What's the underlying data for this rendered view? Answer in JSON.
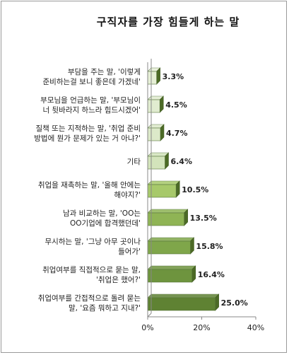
{
  "colors": {
    "bar_shades": [
      "#e6efd6",
      "#e1ecd0",
      "#dce9c9",
      "#d3e4bb",
      "#a7c96a",
      "#8fb455",
      "#7fa64a",
      "#6e943e",
      "#5f8233"
    ],
    "bar_side": "#4c6a26",
    "axis": "#888888",
    "frame": "#9a9a9a"
  },
  "chart_data": {
    "type": "bar",
    "orientation": "horizontal",
    "title": "구직자를 가장 힘들게 하는 말",
    "categories": [
      [
        "부담을 주는 말, '이렇게",
        "준비하는걸 보니 좋은데 가겠네'"
      ],
      [
        "부모님을 언급하는 말, '부모님이",
        "너 뒷바라지 하느라 힘드시겠어'"
      ],
      [
        "질책 또는 지적하는 말, '취업 준비",
        "방법에 뭔가 문제가 있는 거 아냐?'"
      ],
      [
        "기타"
      ],
      [
        "취업을 재촉하는 말, '올해 안에는",
        "해야지?'"
      ],
      [
        "남과 비교하는 말, 'OO는",
        "OO기업에 합격했던데'"
      ],
      [
        "무시하는 말, '그냥 아무 곳이나",
        "들어가'"
      ],
      [
        "취업여부를 직접적으로 묻는 말,",
        "'취업은 했어?'"
      ],
      [
        "취업여부를 간접적으로 돌려 묻는",
        "말, '요즘 뭐하고 지내?'"
      ]
    ],
    "values": [
      3.3,
      4.5,
      4.7,
      6.4,
      10.5,
      13.5,
      15.8,
      16.4,
      25.0
    ],
    "value_labels": [
      "3.3%",
      "4.5%",
      "4.7%",
      "6.4%",
      "10.5%",
      "13.5%",
      "15.8%",
      "16.4%",
      "25.0%"
    ],
    "xlim": [
      0,
      40
    ],
    "xticks": [
      0,
      20,
      40
    ],
    "xtick_labels": [
      "0%",
      "20%",
      "40%"
    ],
    "grid": false,
    "legend": "none"
  }
}
